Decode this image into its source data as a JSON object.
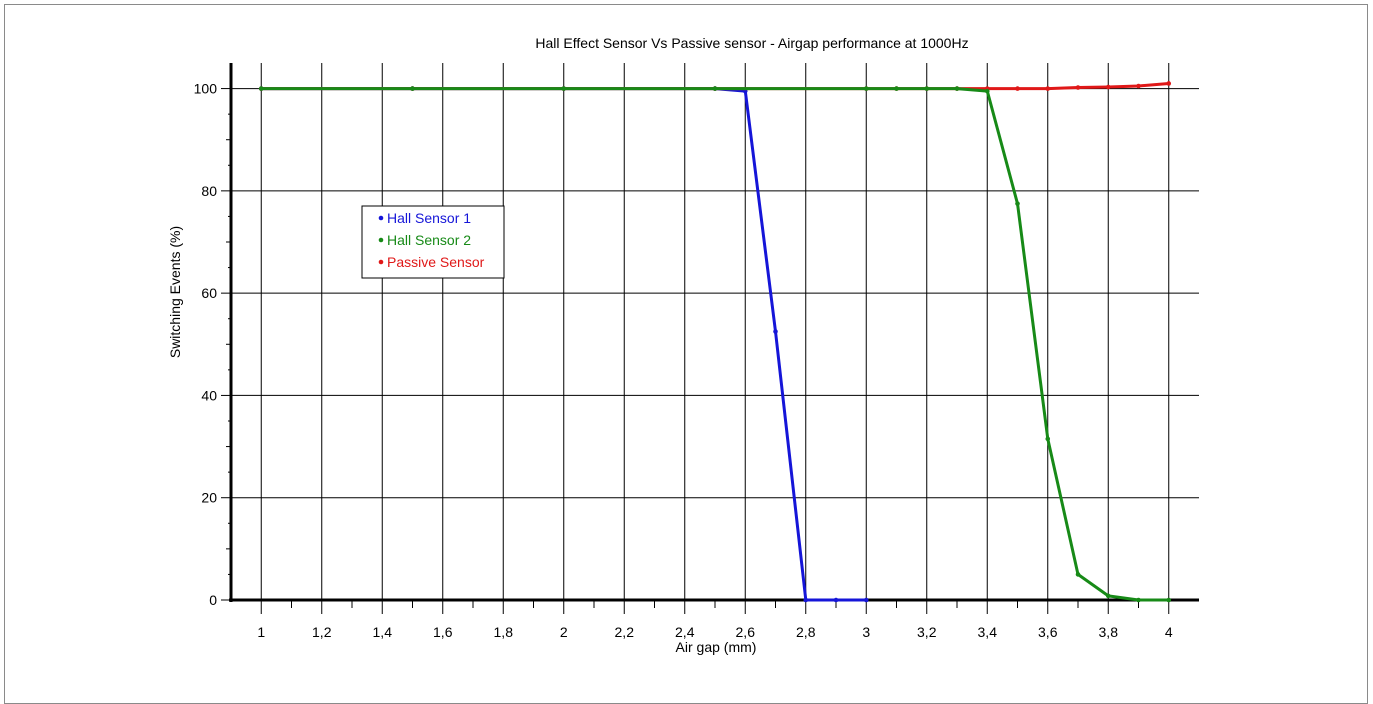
{
  "chart_data": {
    "type": "line",
    "title": "Hall Effect Sensor Vs Passive sensor - Airgap performance at 1000Hz",
    "xlabel": "Air gap (mm)",
    "ylabel": "Switching Events (%)",
    "xlim": [
      0.9,
      4.1
    ],
    "ylim": [
      0,
      105
    ],
    "x_ticks": [
      "1",
      "1,2",
      "1,4",
      "1,6",
      "1,8",
      "2",
      "2,2",
      "2,4",
      "2,6",
      "2,8",
      "3",
      "3,2",
      "3,4",
      "3,6",
      "3,8",
      "4"
    ],
    "y_ticks": [
      "0",
      "20",
      "40",
      "60",
      "80",
      "100"
    ],
    "grid": true,
    "legend_position": "upper-left",
    "series": [
      {
        "name": "Hall Sensor 1",
        "color": "#1515d8",
        "x": [
          1,
          1.5,
          2,
          2.5,
          2.6,
          2.7,
          2.8,
          2.9,
          3
        ],
        "y": [
          100,
          100,
          100,
          100,
          99.5,
          52.5,
          0,
          0,
          0
        ]
      },
      {
        "name": "Passive Sensor",
        "color": "#e01818",
        "x": [
          1,
          1.5,
          2,
          2.5,
          3,
          3.1,
          3.2,
          3.3,
          3.4,
          3.5,
          3.6,
          3.7,
          3.8,
          3.9,
          4
        ],
        "y": [
          100,
          100,
          100,
          100,
          100,
          100,
          100,
          100,
          100,
          100,
          100,
          100.2,
          100.3,
          100.5,
          101
        ]
      },
      {
        "name": "Hall Sensor 2",
        "color": "#178a17",
        "x": [
          1,
          1.5,
          2,
          2.5,
          3,
          3.1,
          3.2,
          3.3,
          3.4,
          3.5,
          3.6,
          3.7,
          3.8,
          3.9,
          4
        ],
        "y": [
          100,
          100,
          100,
          100,
          100,
          100,
          100,
          100,
          99.5,
          77.5,
          31.5,
          5,
          0.8,
          0,
          0
        ]
      }
    ],
    "legend_order": [
      "Hall Sensor 1",
      "Hall Sensor 2",
      "Passive Sensor"
    ]
  }
}
